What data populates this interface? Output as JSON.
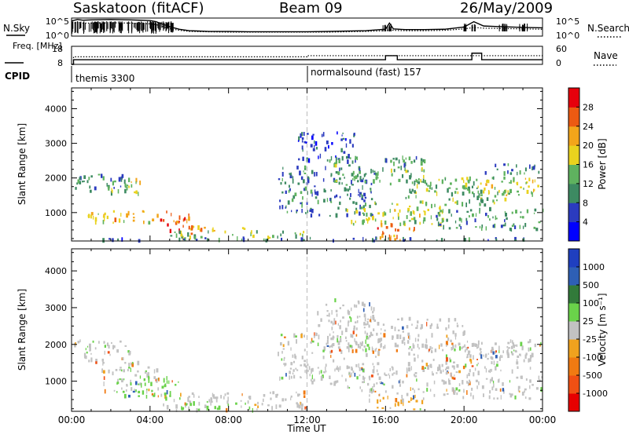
{
  "header": {
    "station": "Saskatoon (fitACF)",
    "beam": "Beam 09",
    "date": "26/May/2009"
  },
  "chart_data": [
    {
      "type": "line",
      "panel": "noise",
      "left_label": "N.Sky",
      "right_label": "N.Search",
      "left_ticks": [
        "10^5",
        "10^0"
      ],
      "right_ticks": [
        "10^5",
        "10^0"
      ],
      "x": [
        0,
        0.3,
        0.6,
        1,
        2,
        3,
        3.5,
        4,
        4.3,
        4.6,
        5,
        5.5,
        6,
        7,
        8,
        9,
        10,
        11,
        12,
        13,
        14,
        15,
        16,
        16.2,
        16.4,
        17,
        18,
        19,
        20,
        20.5,
        21,
        22,
        23,
        24
      ],
      "series": [
        {
          "values": [
            4.2,
            4.6,
            4.4,
            4.5,
            4.6,
            4.5,
            4.4,
            4.3,
            4.0,
            3.4,
            2.6,
            1.9,
            1.5,
            1.3,
            1.3,
            1.2,
            1.2,
            1.2,
            1.2,
            1.3,
            1.4,
            1.5,
            1.9,
            3.6,
            2.0,
            1.8,
            1.8,
            1.9,
            2.5,
            4.0,
            2.8,
            2.6,
            2.4,
            2.3
          ]
        },
        {
          "values": [
            3.6,
            3.8,
            3.6,
            3.6,
            3.7,
            3.6,
            3.5,
            3.4,
            3.2,
            2.7,
            2.1,
            1.6,
            1.3,
            1.2,
            1.1,
            1.1,
            1.1,
            1.1,
            1.1,
            1.1,
            1.2,
            1.3,
            1.5,
            1.8,
            1.6,
            1.5,
            1.5,
            1.6,
            2.0,
            2.4,
            2.2,
            2.1,
            2.0,
            1.9
          ],
          "style": "dotted"
        }
      ],
      "xlim": [
        0,
        24
      ],
      "ylim": [
        0,
        5
      ]
    },
    {
      "type": "line",
      "panel": "freq_nave",
      "left_label": "Freq. [MHz]",
      "right_label": "Nave",
      "left_ticks": [
        "18",
        "8"
      ],
      "right_ticks": [
        "60",
        "0"
      ],
      "x": [
        0,
        0.1,
        4.0,
        12.0,
        15.9,
        16.0,
        16.5,
        16.6,
        20.3,
        20.4,
        20.8,
        20.9,
        24
      ],
      "series": [
        {
          "values": [
            8,
            10.6,
            10.6,
            10.6,
            10.6,
            12.8,
            12.8,
            10.6,
            10.6,
            14.2,
            14.2,
            10.6,
            10.6
          ]
        },
        {
          "values": [
            8,
            12.2,
            12.2,
            12.8,
            12.8,
            12.8,
            12.8,
            12.8,
            12.8,
            12.8,
            12.8,
            12.8,
            12.8
          ],
          "style": "dotted"
        }
      ],
      "xlim": [
        0,
        24
      ],
      "ylim": [
        8,
        18
      ]
    },
    {
      "type": "heatmap",
      "panel": "power",
      "ylabel": "Slant Range [km]",
      "colorbar_label": "Power [dB]",
      "y_ticks": [
        "1000",
        "2000",
        "3000",
        "4000"
      ],
      "ylim": [
        180,
        4600
      ],
      "xlim": [
        0,
        24
      ],
      "colorbar_ticks": [
        "4",
        "8",
        "12",
        "16",
        "20",
        "24",
        "28"
      ],
      "colorbar_colors": [
        "#0000ff",
        "#2b3bbf",
        "#3d8a62",
        "#5fb25f",
        "#e9d21e",
        "#f3a51a",
        "#ec5a12",
        "#e6000c"
      ],
      "regions": [
        {
          "t": [
            0,
            2.8
          ],
          "r": [
            1550,
            2100
          ],
          "v": 10
        },
        {
          "t": [
            2.0,
            3.5
          ],
          "r": [
            1500,
            2000
          ],
          "v": 18
        },
        {
          "t": [
            0.5,
            4.5
          ],
          "r": [
            700,
            1050
          ],
          "v": 20
        },
        {
          "t": [
            4.5,
            6.0
          ],
          "r": [
            450,
            1050
          ],
          "v": 26
        },
        {
          "t": [
            5.0,
            12.0
          ],
          "r": [
            200,
            450
          ],
          "v": 14
        },
        {
          "t": [
            6.0,
            9.0
          ],
          "r": [
            380,
            600
          ],
          "v": 22
        },
        {
          "t": [
            10.5,
            15.5
          ],
          "r": [
            900,
            2300
          ],
          "v": 9
        },
        {
          "t": [
            11.5,
            14.5
          ],
          "r": [
            2500,
            3300
          ],
          "v": 6
        },
        {
          "t": [
            13.0,
            18.0
          ],
          "r": [
            1800,
            2600
          ],
          "v": 12
        },
        {
          "t": [
            14.0,
            19.0
          ],
          "r": [
            650,
            1300
          ],
          "v": 16
        },
        {
          "t": [
            15.5,
            17.5
          ],
          "r": [
            200,
            700
          ],
          "v": 24
        },
        {
          "t": [
            17.0,
            22.5
          ],
          "r": [
            1200,
            2000
          ],
          "v": 13
        },
        {
          "t": [
            19.5,
            23.8
          ],
          "r": [
            1500,
            2000
          ],
          "v": 17
        },
        {
          "t": [
            18.5,
            24.0
          ],
          "r": [
            500,
            1100
          ],
          "v": 11
        },
        {
          "t": [
            21.0,
            24.0
          ],
          "r": [
            2100,
            2400
          ],
          "v": 10
        },
        {
          "t": [
            0,
            24.0
          ],
          "r": [
            180,
            260
          ],
          "v": 8
        }
      ]
    },
    {
      "type": "heatmap",
      "panel": "velocity",
      "ylabel": "Slant Range [km]",
      "colorbar_label": "Velocity [m s⁻¹]",
      "y_ticks": [
        "1000",
        "2000",
        "3000",
        "4000"
      ],
      "ylim": [
        180,
        4600
      ],
      "xlim": [
        0,
        24
      ],
      "xlabel": "Time UT",
      "x_ticks": [
        "00:00",
        "04:00",
        "08:00",
        "12:00",
        "16:00",
        "20:00",
        "00:00"
      ],
      "colorbar_ticks": [
        "1000",
        "500",
        "100",
        "25",
        "-25",
        "-100",
        "-500",
        "-1000"
      ],
      "colorbar_colors": [
        "#1f3fbf",
        "#2e5fb5",
        "#327a3a",
        "#6ad24a",
        "#c2c2c2",
        "#f0a21e",
        "#f07a12",
        "#f05014",
        "#e60000"
      ],
      "regions": [
        {
          "t": [
            0,
            3.0
          ],
          "r": [
            1500,
            2100
          ],
          "v": 0
        },
        {
          "t": [
            1.5,
            4.5
          ],
          "r": [
            700,
            1500
          ],
          "v": 15
        },
        {
          "t": [
            2.0,
            5.5
          ],
          "r": [
            500,
            1100
          ],
          "v": 60
        },
        {
          "t": [
            4.5,
            12.0
          ],
          "r": [
            200,
            700
          ],
          "v": 0
        },
        {
          "t": [
            5.5,
            9.5
          ],
          "r": [
            200,
            400
          ],
          "v": 80
        },
        {
          "t": [
            10.5,
            16.0
          ],
          "r": [
            900,
            2300
          ],
          "v": 0
        },
        {
          "t": [
            12.5,
            15.5
          ],
          "r": [
            2500,
            3200
          ],
          "v": 0
        },
        {
          "t": [
            13.0,
            20.0
          ],
          "r": [
            1800,
            2700
          ],
          "v": 5
        },
        {
          "t": [
            14.0,
            19.5
          ],
          "r": [
            600,
            1400
          ],
          "v": -10
        },
        {
          "t": [
            15.0,
            18.0
          ],
          "r": [
            200,
            600
          ],
          "v": -30
        },
        {
          "t": [
            17.0,
            23.5
          ],
          "r": [
            1200,
            2000
          ],
          "v": 5
        },
        {
          "t": [
            19.0,
            24.0
          ],
          "r": [
            500,
            1200
          ],
          "v": -5
        },
        {
          "t": [
            20.0,
            24.0
          ],
          "r": [
            1500,
            2100
          ],
          "v": 0
        }
      ]
    }
  ],
  "cpid": {
    "label": "CPID",
    "mode1": "themis 3300",
    "mode2": "normalsound (fast) 157"
  },
  "colors": {
    "axis": "#000000",
    "dashed_marker": "#bbbbbb"
  }
}
